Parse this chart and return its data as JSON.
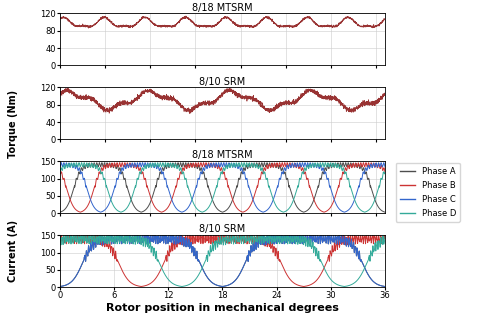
{
  "title_torque1": "8/18 MTSRM",
  "title_torque2": "8/10 SRM",
  "title_current1": "8/18 MTSRM",
  "title_current2": "8/10 SRM",
  "xlabel": "Rotor position in mechanical degrees",
  "ylabel_torque": "Torque (Nm)",
  "ylabel_current": "Current (A)",
  "xlim": [
    0,
    36
  ],
  "torque_ylim": [
    0,
    120
  ],
  "current_ylim": [
    0,
    150
  ],
  "torque_yticks": [
    0,
    40,
    80,
    120
  ],
  "current_yticks": [
    0,
    50,
    100,
    150
  ],
  "xticks": [
    0,
    6,
    12,
    18,
    24,
    30,
    36
  ],
  "phase_colors": {
    "A": "#4d4d4d",
    "B": "#cc3333",
    "C": "#3366cc",
    "D": "#33aa99"
  },
  "legend_labels": [
    "Phase A",
    "Phase B",
    "Phase C",
    "Phase D"
  ],
  "background": "#ffffff",
  "grid_color": "#cccccc",
  "torque_color": "#993333",
  "num_points": 3000
}
